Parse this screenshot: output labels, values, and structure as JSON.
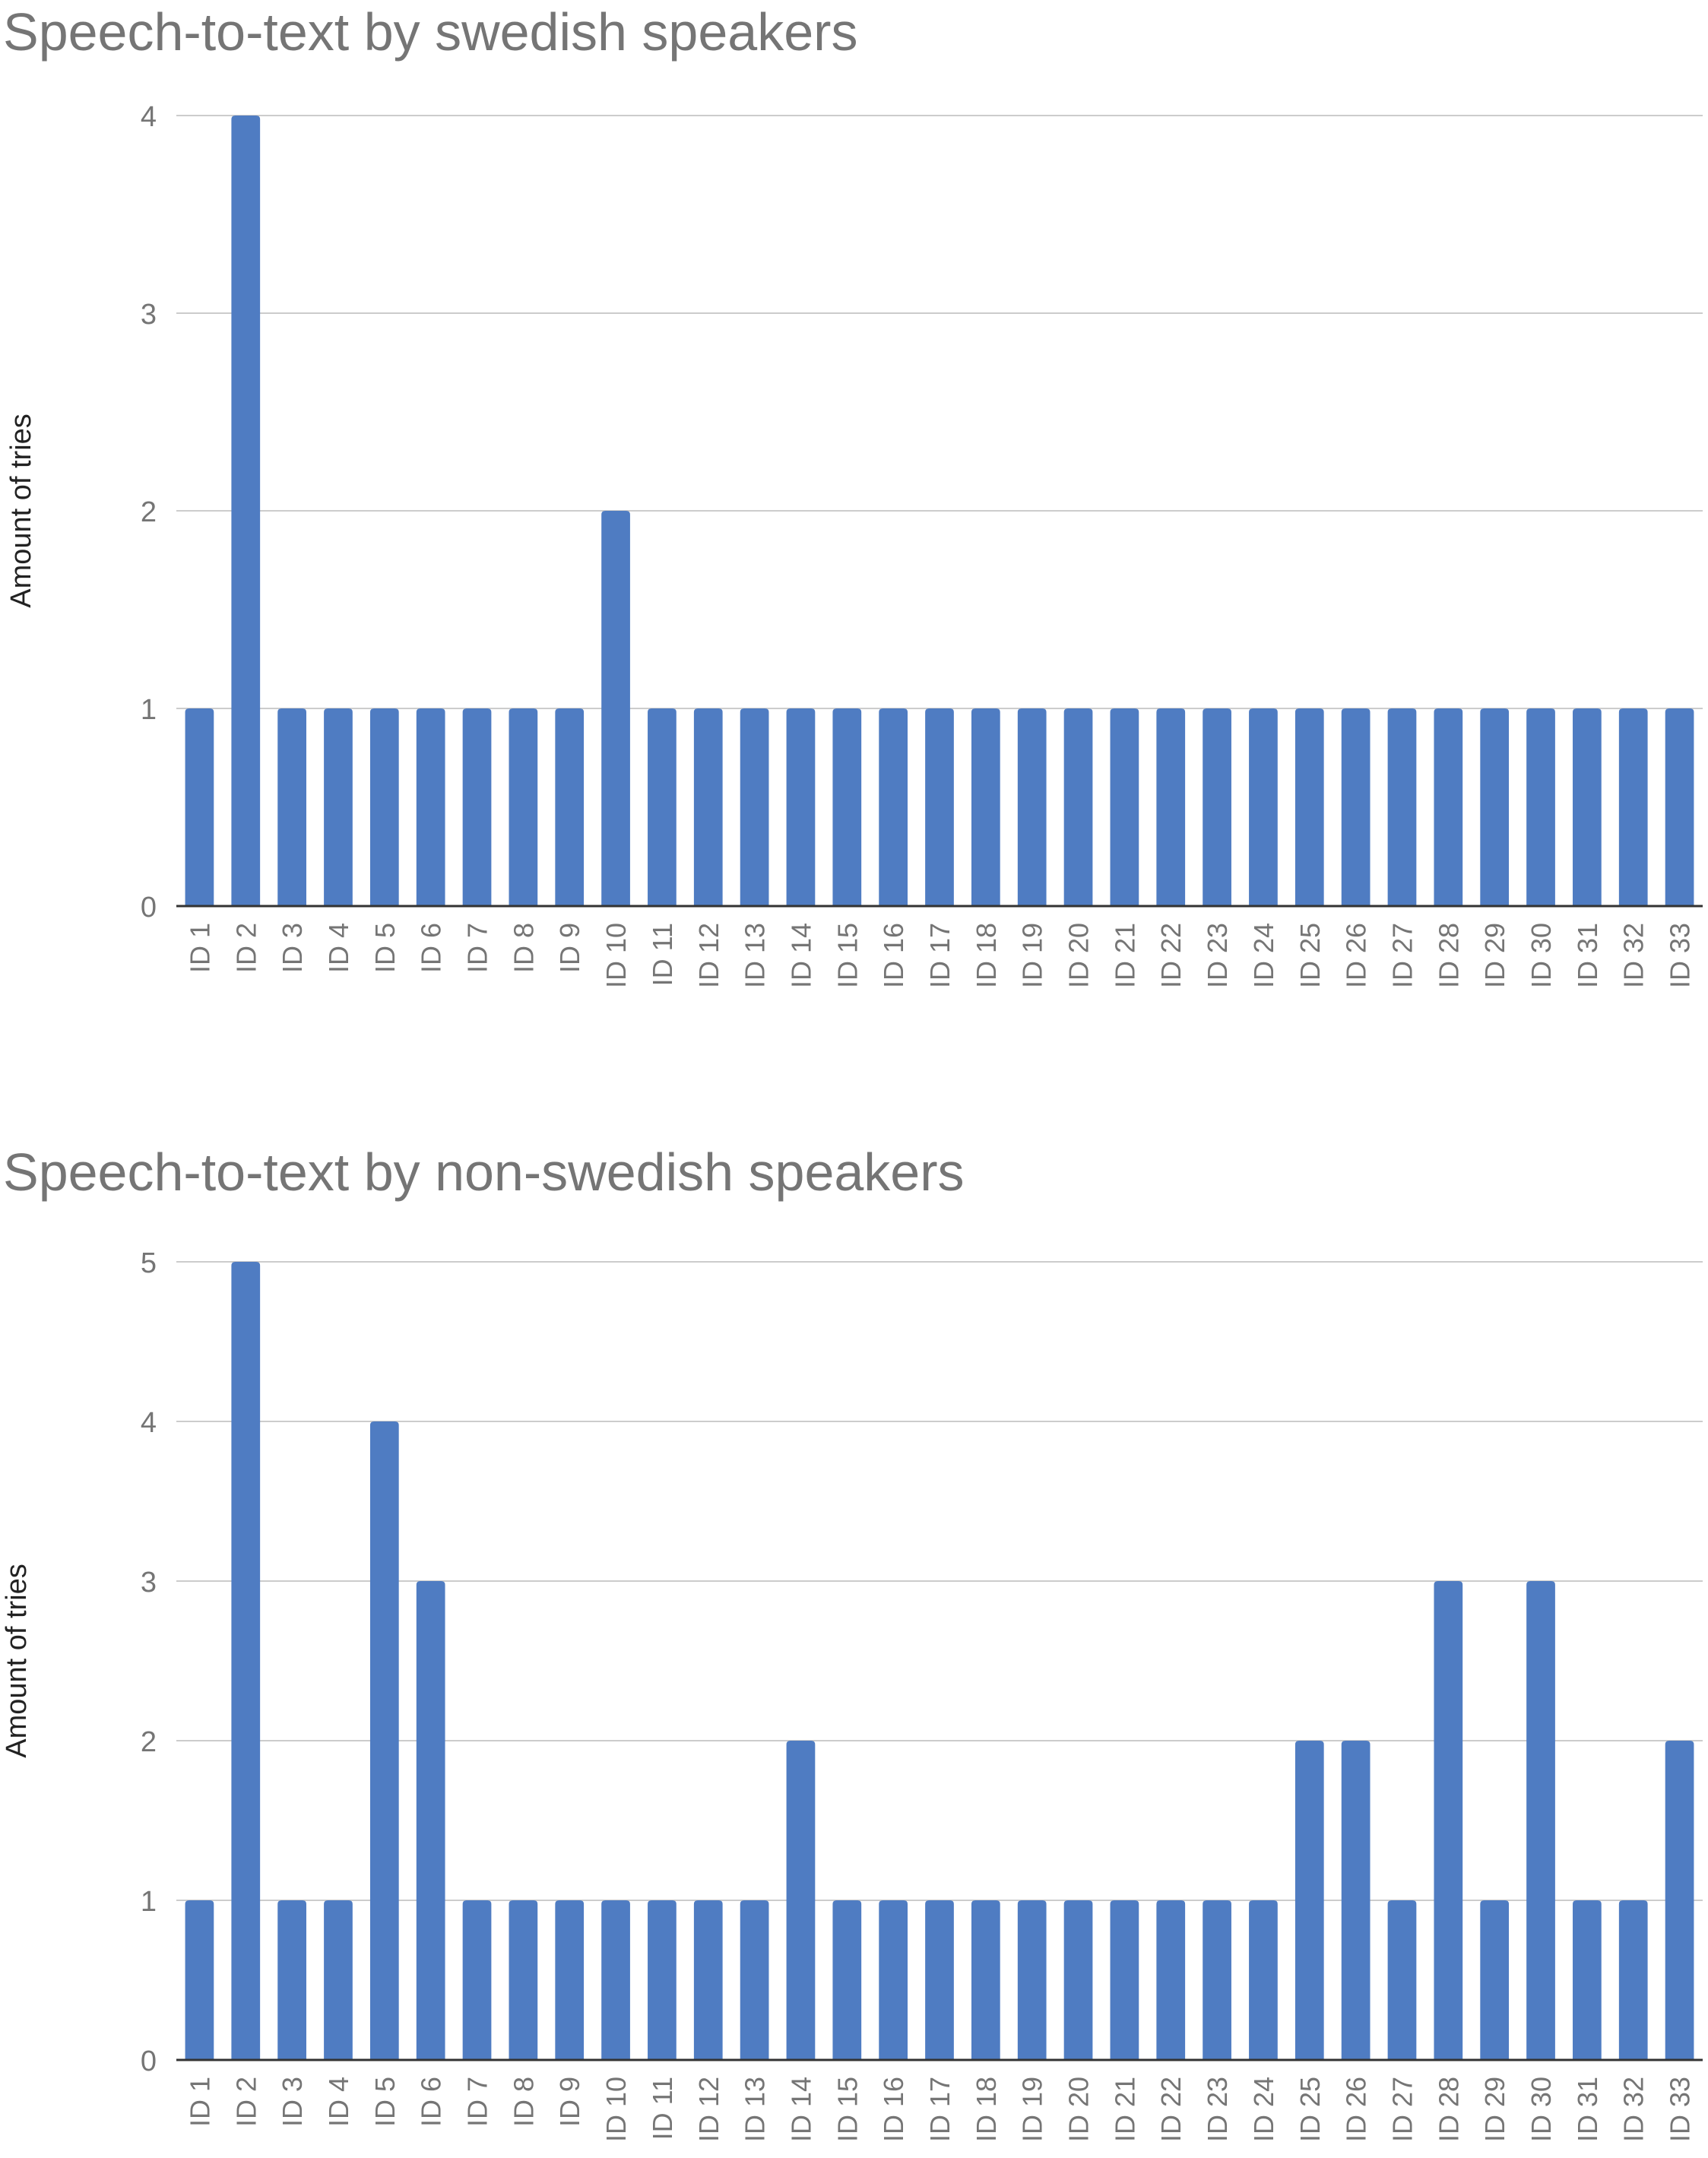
{
  "colors": {
    "bar": "#4f7cc2",
    "gridline": "#cccccc",
    "axis_line": "#333333",
    "tick_text": "#757575",
    "title_text": "#757575"
  },
  "chart_data": [
    {
      "type": "bar",
      "title": "Speech-to-text by swedish speakers",
      "xlabel": "",
      "ylabel": "Amount of tries",
      "ylim": [
        0,
        4
      ],
      "yticks": [
        0,
        1,
        2,
        3,
        4
      ],
      "grid": true,
      "legend": "none",
      "categories": [
        "ID 1",
        "ID 2",
        "ID 3",
        "ID 4",
        "ID 5",
        "ID 6",
        "ID 7",
        "ID 8",
        "ID 9",
        "ID 10",
        "ID 11",
        "ID 12",
        "ID 13",
        "ID 14",
        "ID 15",
        "ID 16",
        "ID 17",
        "ID 18",
        "ID 19",
        "ID 20",
        "ID 21",
        "ID 22",
        "ID 23",
        "ID 24",
        "ID 25",
        "ID 26",
        "ID 27",
        "ID 28",
        "ID 29",
        "ID 30",
        "ID 31",
        "ID 32",
        "ID 33"
      ],
      "values": [
        1,
        4,
        1,
        1,
        1,
        1,
        1,
        1,
        1,
        2,
        1,
        1,
        1,
        1,
        1,
        1,
        1,
        1,
        1,
        1,
        1,
        1,
        1,
        1,
        1,
        1,
        1,
        1,
        1,
        1,
        1,
        1,
        1
      ]
    },
    {
      "type": "bar",
      "title": "Speech-to-text by non-swedish speakers",
      "xlabel": "",
      "ylabel": "Amount of tries",
      "ylim": [
        0,
        5
      ],
      "yticks": [
        0,
        1,
        2,
        3,
        4,
        5
      ],
      "grid": true,
      "legend": "none",
      "categories": [
        "ID 1",
        "ID 2",
        "ID 3",
        "ID 4",
        "ID 5",
        "ID 6",
        "ID 7",
        "ID 8",
        "ID 9",
        "ID 10",
        "ID 11",
        "ID 12",
        "ID 13",
        "ID 14",
        "ID 15",
        "ID 16",
        "ID 17",
        "ID 18",
        "ID 19",
        "ID 20",
        "ID 21",
        "ID 22",
        "ID 23",
        "ID 24",
        "ID 25",
        "ID 26",
        "ID 27",
        "ID 28",
        "ID 29",
        "ID 30",
        "ID 31",
        "ID 32",
        "ID 33"
      ],
      "values": [
        1,
        5,
        1,
        1,
        4,
        3,
        1,
        1,
        1,
        1,
        1,
        1,
        1,
        2,
        1,
        1,
        1,
        1,
        1,
        1,
        1,
        1,
        1,
        1,
        2,
        2,
        1,
        3,
        1,
        3,
        1,
        1,
        2
      ]
    }
  ]
}
